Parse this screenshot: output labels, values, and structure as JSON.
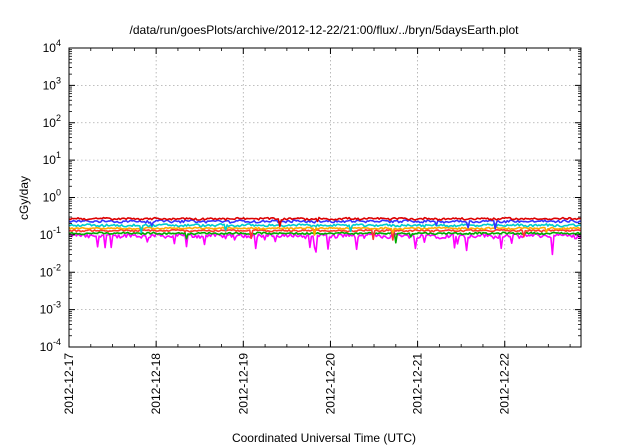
{
  "chart_data": {
    "type": "line",
    "title": "/data/run/goesPlots/archive/2012-12-22/21:00/flux/../bryn/5daysEarth.plot",
    "xlabel": "Coordinated Universal Time (UTC)",
    "ylabel": "cGy/day",
    "y_scale": "log",
    "ylim": [
      0.0001,
      10000
    ],
    "xlim": [
      "2012-12-17",
      "2012-12-22T21:00"
    ],
    "grid": true,
    "x_ticks": [
      "2012-12-17",
      "2012-12-18",
      "2012-12-19",
      "2012-12-20",
      "2012-12-21",
      "2012-12-22"
    ],
    "y_ticks": [
      {
        "base": "10",
        "exp": "-4"
      },
      {
        "base": "10",
        "exp": "-3"
      },
      {
        "base": "10",
        "exp": "-2"
      },
      {
        "base": "10",
        "exp": "-1"
      },
      {
        "base": "10",
        "exp": "0"
      },
      {
        "base": "10",
        "exp": "1"
      },
      {
        "base": "10",
        "exp": "2"
      },
      {
        "base": "10",
        "exp": "3"
      },
      {
        "base": "10",
        "exp": "4"
      }
    ],
    "series": [
      {
        "color": "#ff00ff",
        "level": 0.095,
        "noise": 0.12,
        "dips": 0.3
      },
      {
        "color": "#00aa00",
        "level": 0.11,
        "noise": 0.05,
        "dips": 0.05
      },
      {
        "color": "#ff3333",
        "level": 0.13,
        "noise": 0.05,
        "dips": 0.05
      },
      {
        "color": "#ffaa00",
        "level": 0.15,
        "noise": 0.05,
        "dips": 0.05
      },
      {
        "color": "#00cccc",
        "level": 0.18,
        "noise": 0.07,
        "dips": 0.08
      },
      {
        "color": "#3333ff",
        "level": 0.23,
        "noise": 0.07,
        "dips": 0.08
      },
      {
        "color": "#dd0000",
        "level": 0.27,
        "noise": 0.06,
        "dips": 0.05
      }
    ]
  }
}
